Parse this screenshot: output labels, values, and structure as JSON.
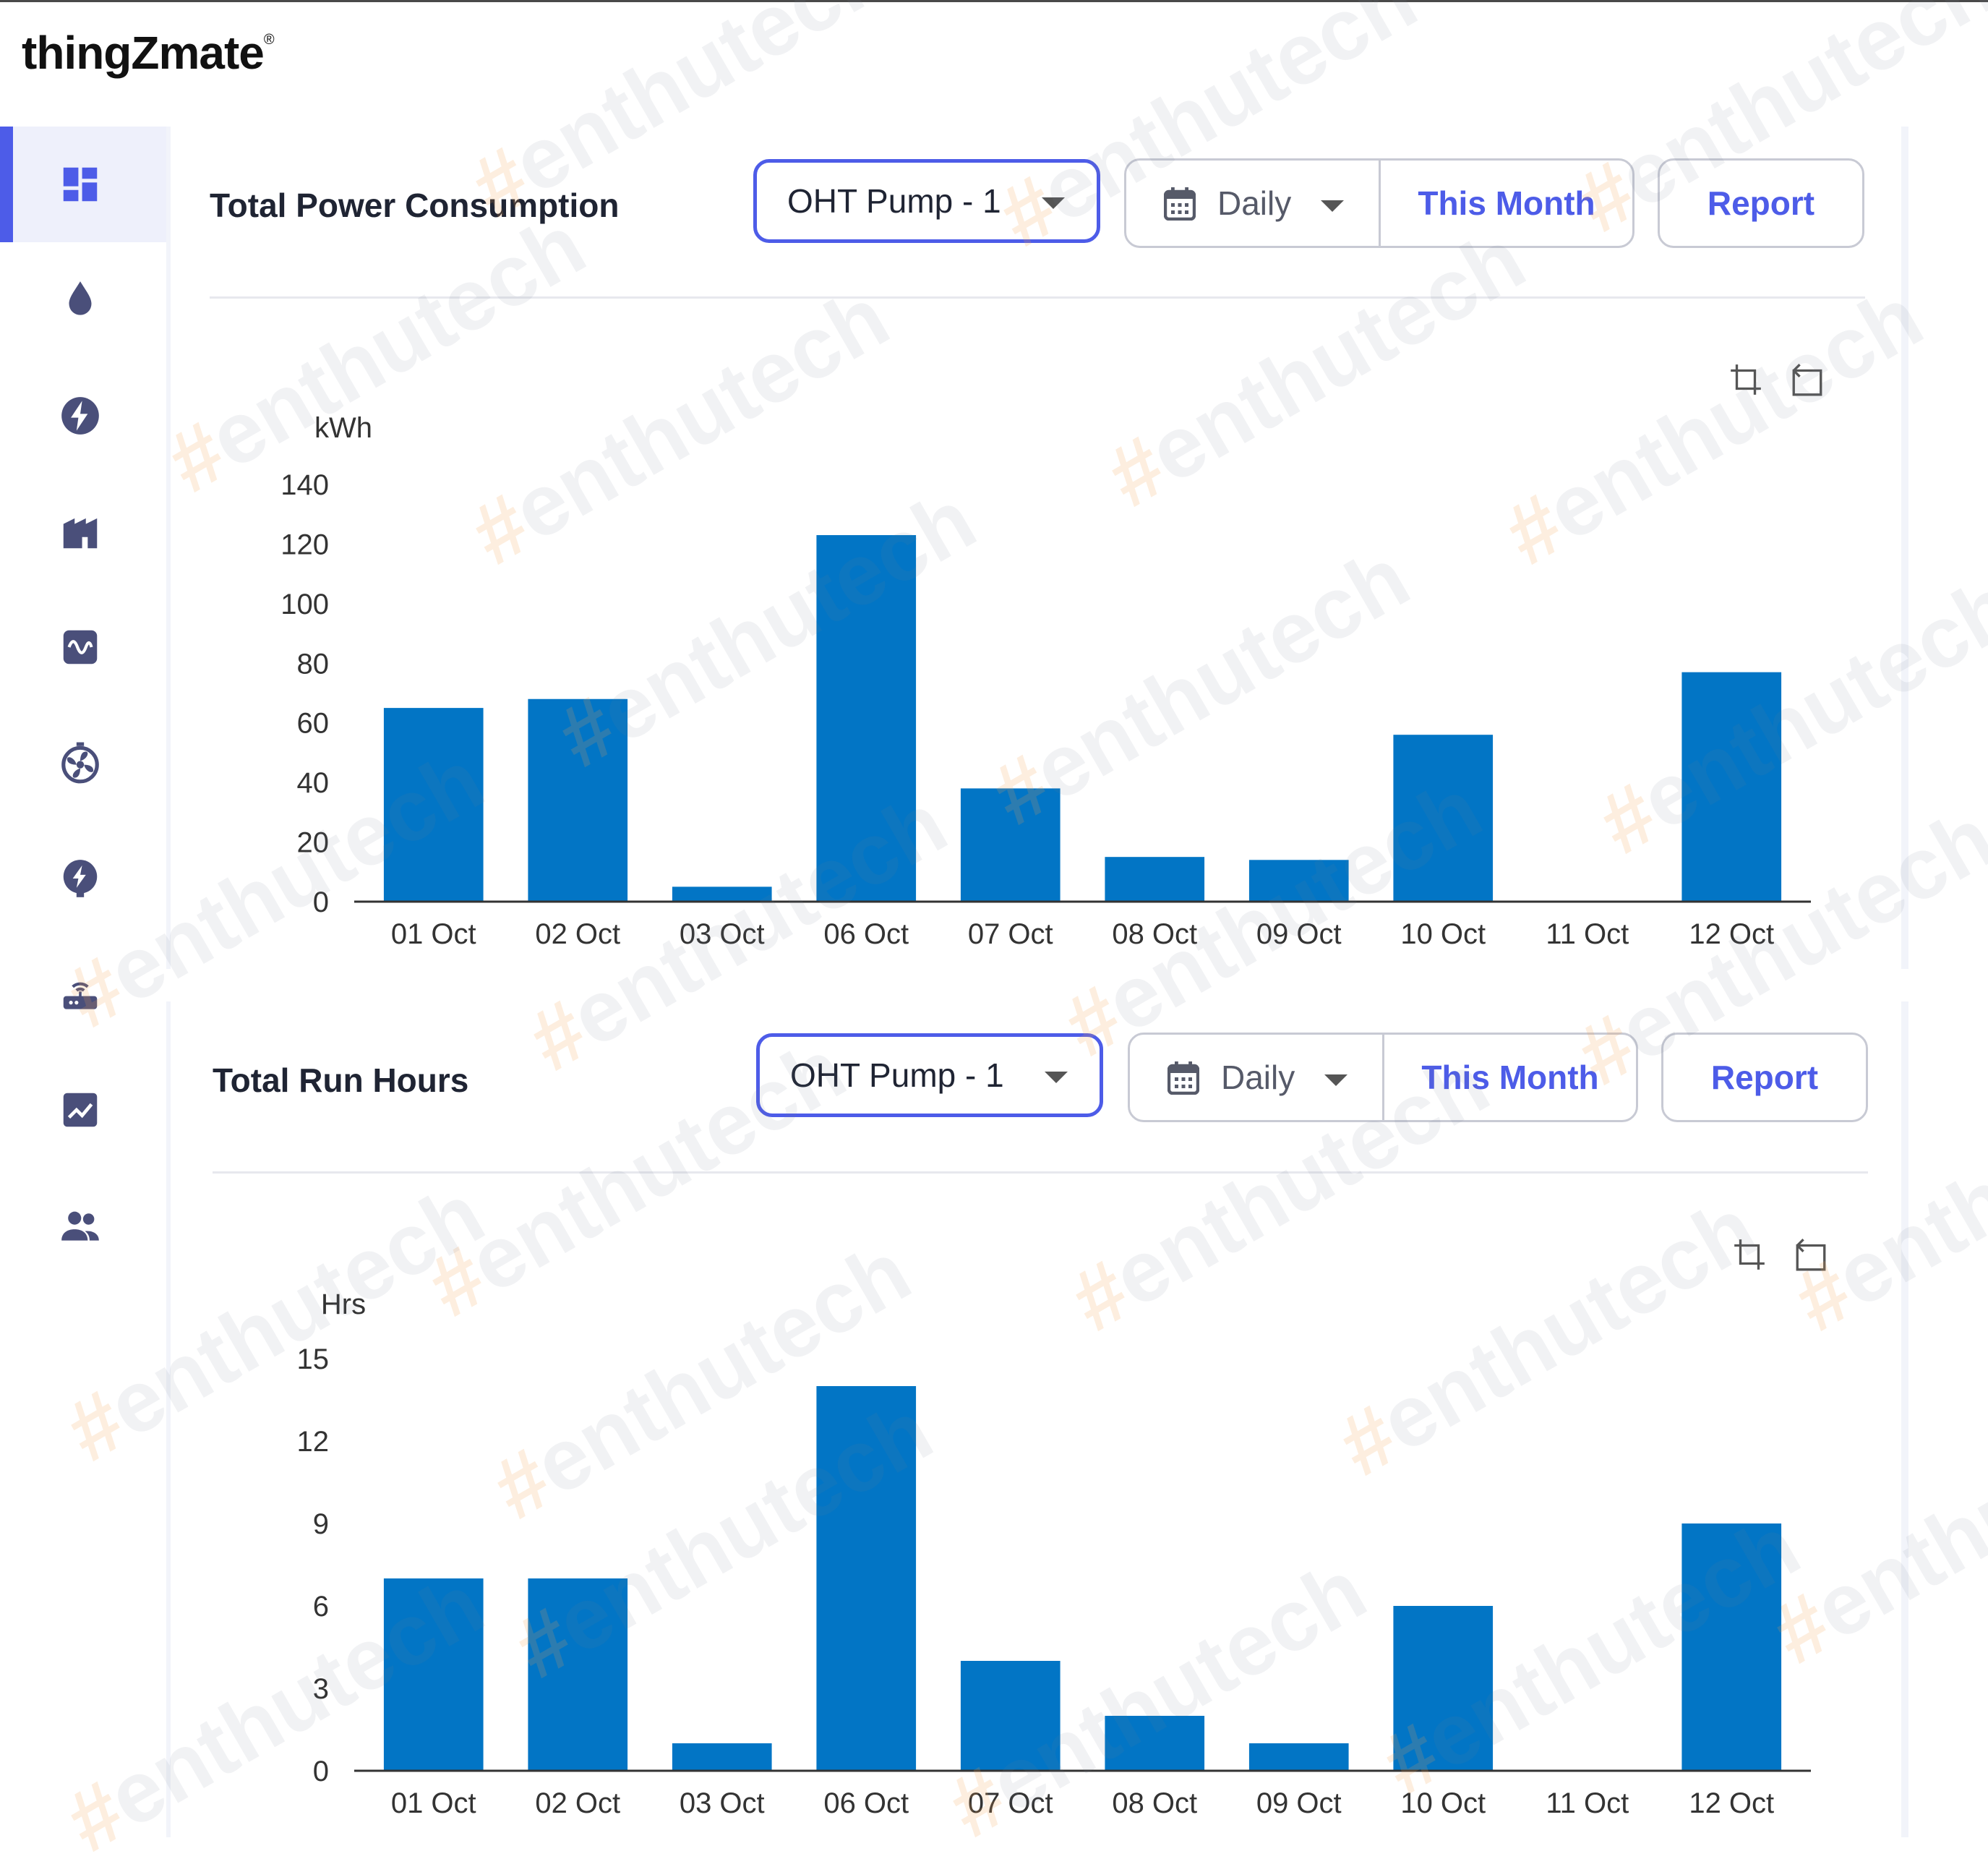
{
  "brand": {
    "name": "thingZmate",
    "mark": "®"
  },
  "sidebar": {
    "items": [
      {
        "icon": "dashboard-icon",
        "active": true
      },
      {
        "icon": "water-drop-icon"
      },
      {
        "icon": "lightning-icon"
      },
      {
        "icon": "factory-icon"
      },
      {
        "icon": "vfd-icon"
      },
      {
        "icon": "fan-icon"
      },
      {
        "icon": "hvac-icon"
      },
      {
        "icon": "router-icon"
      },
      {
        "icon": "analytics-icon"
      },
      {
        "icon": "users-icon"
      }
    ]
  },
  "watermark": {
    "text": "enthutech",
    "hash": "#"
  },
  "panels": [
    {
      "title": "Total Power Consumption",
      "device": "OHT Pump - 1",
      "period": "Daily",
      "range": "This Month",
      "report": "Report",
      "chart_data": {
        "type": "bar",
        "ylabel": "kWh",
        "ylim": [
          0,
          140
        ],
        "yticks": [
          0,
          20,
          40,
          60,
          80,
          100,
          120,
          140
        ],
        "categories": [
          "01 Oct",
          "02 Oct",
          "03 Oct",
          "06 Oct",
          "07 Oct",
          "08 Oct",
          "09 Oct",
          "10 Oct",
          "11 Oct",
          "12 Oct"
        ],
        "values": [
          65,
          68,
          5,
          123,
          38,
          15,
          14,
          56,
          0,
          77
        ],
        "color": "#0275c5"
      }
    },
    {
      "title": "Total Run Hours",
      "device": "OHT Pump - 1",
      "period": "Daily",
      "range": "This Month",
      "report": "Report",
      "chart_data": {
        "type": "bar",
        "ylabel": "Hrs",
        "ylim": [
          0,
          15
        ],
        "yticks": [
          0,
          3,
          6,
          9,
          12,
          15
        ],
        "categories": [
          "01 Oct",
          "02 Oct",
          "03 Oct",
          "06 Oct",
          "07 Oct",
          "08 Oct",
          "09 Oct",
          "10 Oct",
          "11 Oct",
          "12 Oct"
        ],
        "values": [
          7,
          7,
          1,
          14,
          4,
          2,
          1,
          6,
          0,
          9
        ],
        "color": "#0275c5"
      }
    }
  ]
}
